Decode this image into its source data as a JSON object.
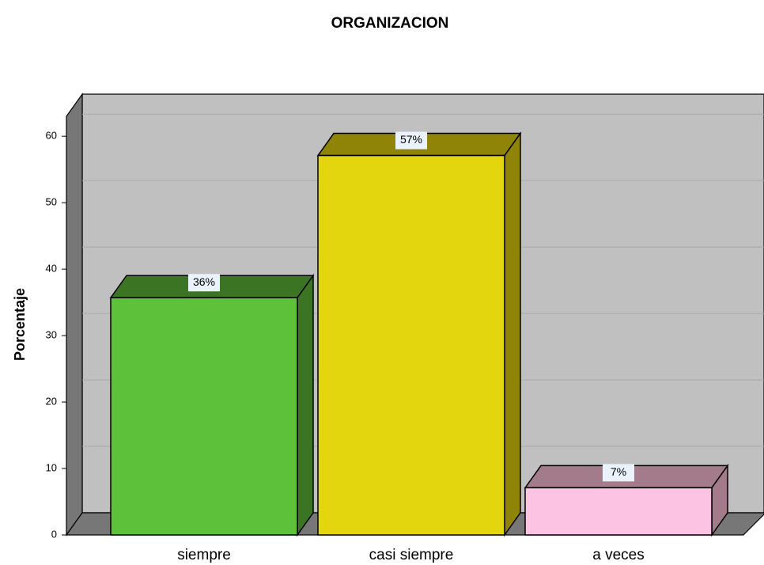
{
  "chart_data": {
    "type": "bar3d",
    "title": "ORGANIZACION",
    "ylabel": "Porcentaje",
    "categories": [
      "siempre",
      "casi siempre",
      "a veces"
    ],
    "values": [
      35.7,
      57.1,
      7.1
    ],
    "value_labels": [
      "36%",
      "57%",
      "7%"
    ],
    "colors": [
      "#5ec13a",
      "#e3d60f",
      "#fcc3e3"
    ],
    "shade_colors": [
      "#3b7523",
      "#8f8408",
      "#a47b8a"
    ],
    "ylim": [
      0,
      63
    ],
    "yticks": [
      0,
      10,
      20,
      30,
      40,
      50,
      60
    ],
    "grid": true
  }
}
